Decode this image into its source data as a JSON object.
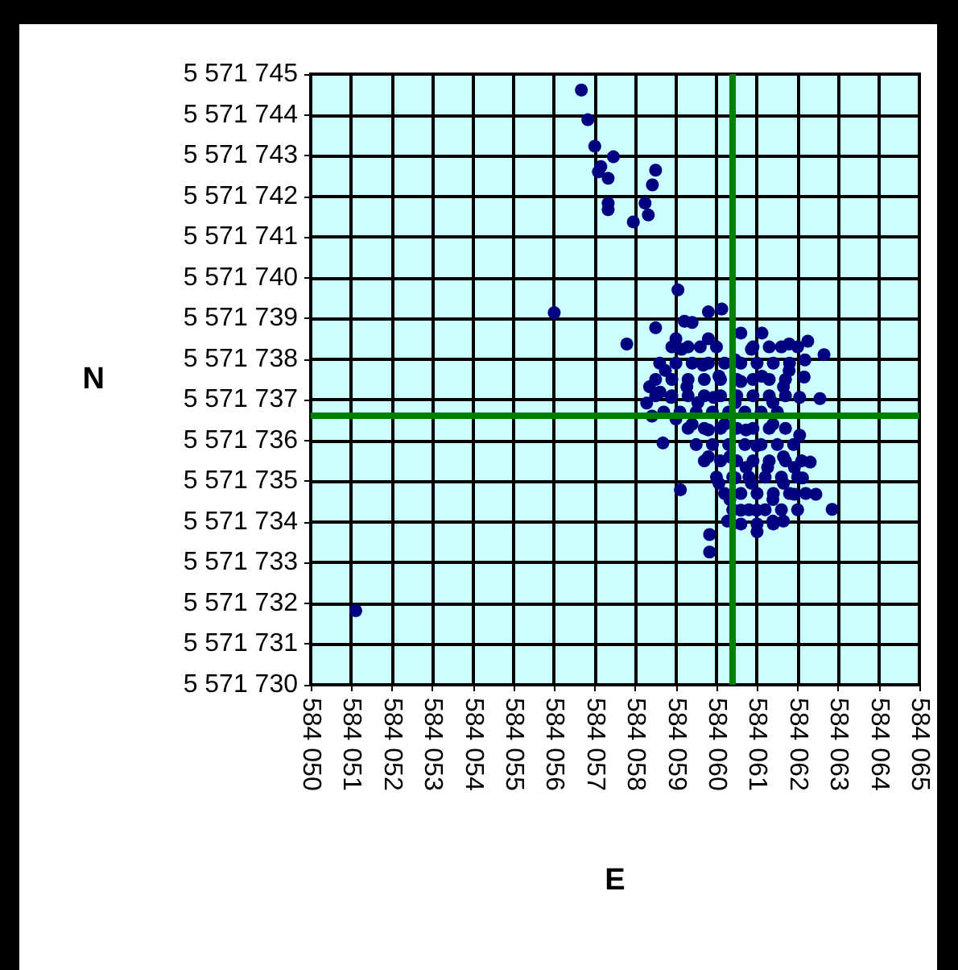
{
  "chart_data": {
    "type": "scatter",
    "xlabel": "E",
    "ylabel": "N",
    "xlim": [
      584050,
      584065
    ],
    "ylim": [
      5571730,
      5571745
    ],
    "xticks": [
      {
        "value": 584050,
        "label": "584 050"
      },
      {
        "value": 584051,
        "label": "584 051"
      },
      {
        "value": 584052,
        "label": "584 052"
      },
      {
        "value": 584053,
        "label": "584 053"
      },
      {
        "value": 584054,
        "label": "584 054"
      },
      {
        "value": 584055,
        "label": "584 055"
      },
      {
        "value": 584056,
        "label": "584 056"
      },
      {
        "value": 584057,
        "label": "584 057"
      },
      {
        "value": 584058,
        "label": "584 058"
      },
      {
        "value": 584059,
        "label": "584 059"
      },
      {
        "value": 584060,
        "label": "584 060"
      },
      {
        "value": 584061,
        "label": "584 061"
      },
      {
        "value": 584062,
        "label": "584 062"
      },
      {
        "value": 584063,
        "label": "584 063"
      },
      {
        "value": 584064,
        "label": "584 064"
      },
      {
        "value": 584065,
        "label": "584 065"
      }
    ],
    "yticks": [
      {
        "value": 5571730,
        "label": "5 571 730"
      },
      {
        "value": 5571731,
        "label": "5 571 731"
      },
      {
        "value": 5571732,
        "label": "5 571 732"
      },
      {
        "value": 5571733,
        "label": "5 571 733"
      },
      {
        "value": 5571734,
        "label": "5 571 734"
      },
      {
        "value": 5571735,
        "label": "5 571 735"
      },
      {
        "value": 5571736,
        "label": "5 571 736"
      },
      {
        "value": 5571737,
        "label": "5 571 737"
      },
      {
        "value": 5571738,
        "label": "5 571 738"
      },
      {
        "value": 5571739,
        "label": "5 571 739"
      },
      {
        "value": 5571740,
        "label": "5 571 740"
      },
      {
        "value": 5571741,
        "label": "5 571 741"
      },
      {
        "value": 5571742,
        "label": "5 571 742"
      },
      {
        "value": 5571743,
        "label": "5 571 743"
      },
      {
        "value": 5571744,
        "label": "5 571 744"
      },
      {
        "value": 5571745,
        "label": "5 571 745"
      }
    ],
    "grid": true,
    "marker": "circle",
    "ref_lines": [
      {
        "axis": "x",
        "value": 584060.4,
        "color": "#008000"
      },
      {
        "axis": "y",
        "value": 5571736.6,
        "color": "#008000"
      }
    ],
    "series": [
      {
        "color": "#000080",
        "x": [
          584056.67,
          584056.83,
          584057.0,
          584057.46,
          584057.15,
          584057.09,
          584057.33,
          584058.5,
          584058.42,
          584057.33,
          584057.33,
          584058.24,
          584058.32,
          584057.95,
          584051.11,
          584056.0,
          584059.05,
          584059.21,
          584057.79,
          584058.5,
          584060.13,
          584062.65,
          584062.16,
          584062.55,
          584062.05,
          584062.25,
          584061.12,
          584060.6,
          584059.11,
          584059.83,
          584059.83,
          584062.85,
          584062.45,
          584058.41,
          584058.28,
          584058.68,
          584060.27,
          584061.0,
          584061.65,
          584062.12,
          584062.05,
          584061.39,
          584061.79,
          584061.79,
          584058.74,
          584059.14,
          584059.8,
          584059.54,
          584060.06,
          584059.8,
          584060.33,
          584060.86,
          584061.39,
          584060.73,
          584061.65,
          584061.12,
          584059.27,
          584059.0,
          584060.46,
          584060.06,
          584060.6,
          584061.92,
          584060.86,
          584058.61,
          584059.4,
          584059.67,
          584058.88,
          584059.93,
          584059.4,
          584060.2,
          584060.99,
          584061.26,
          584060.46,
          584060.99,
          584061.65,
          584061.92,
          584061.39,
          584061.65,
          584062.18,
          584060.46,
          584059.8,
          584059.0,
          584058.35,
          584060.6,
          584059.8,
          584060.73,
          584061.39,
          584060.33,
          584062.31,
          584058.9,
          584059.3,
          584059.6,
          584060.0,
          584060.9,
          584061.3,
          584061.6,
          584062.0,
          584058.6,
          584059.0,
          584059.4,
          584059.8,
          584060.2,
          584060.6,
          584061.0,
          584061.4,
          584061.8,
          584058.5,
          584058.9,
          584059.3,
          584059.7,
          584060.1,
          584060.5,
          584060.9,
          584061.3,
          584061.7,
          584058.5,
          584058.9,
          584059.3,
          584059.7,
          584060.1,
          584060.5,
          584060.9,
          584061.3,
          584061.7,
          584058.7,
          584059.1,
          584059.5,
          584059.9,
          584060.3,
          584060.7,
          584061.1,
          584061.5,
          584059.3,
          584059.7,
          584060.1,
          584060.5,
          584060.9,
          584061.3,
          584061.7,
          584059.5,
          584059.9,
          584060.3,
          584060.7,
          584061.1,
          584061.5,
          584061.9,
          584059.7,
          584060.1,
          584060.5,
          584060.9,
          584061.3,
          584061.7,
          584062.1,
          584060.0,
          584060.4,
          584060.8,
          584061.2,
          584061.6,
          584062.0,
          584060.2,
          584060.6,
          584061.0,
          584061.4,
          584061.8,
          584062.2,
          584060.4,
          584060.8,
          584061.2,
          584061.6,
          584062.0,
          584060.6,
          584061.0,
          584061.4
        ],
        "values": [
          5571744.61,
          5571743.88,
          5571743.23,
          5571742.97,
          5571742.73,
          5571742.6,
          5571742.44,
          5571742.64,
          5571742.28,
          5571741.83,
          5571741.67,
          5571741.83,
          5571741.54,
          5571741.37,
          5571731.82,
          5571739.14,
          5571739.7,
          5571738.93,
          5571738.37,
          5571738.77,
          5571739.23,
          5571738.11,
          5571737.56,
          5571737.03,
          5571737.06,
          5571738.44,
          5571738.64,
          5571738.64,
          5571734.79,
          5571733.69,
          5571733.26,
          5571734.31,
          5571734.68,
          5571736.6,
          5571736.92,
          5571735.94,
          5571734.02,
          5571733.76,
          5571734.02,
          5571735.08,
          5571736.13,
          5571736.93,
          5571737.72,
          5571738.37,
          5571737.72,
          5571738.24,
          5571738.5,
          5571736.93,
          5571737.58,
          5571736.26,
          5571735.6,
          5571734.95,
          5571734.55,
          5571736.26,
          5571735.6,
          5571737.58,
          5571737.32,
          5571736.53,
          5571736.93,
          5571734.95,
          5571734.29,
          5571734.68,
          5571738.24,
          5571737.19,
          5571738.9,
          5571737.85,
          5571737.06,
          5571737.06,
          5571736.4,
          5571736.4,
          5571735.87,
          5571735.34,
          5571735.08,
          5571734.29,
          5571734.95,
          5571735.34,
          5571736.4,
          5571737.32,
          5571737.98,
          5571737.98,
          5571739.16,
          5571738.5,
          5571737.32,
          5571737.45,
          5571735.6,
          5571735.34,
          5571734.02,
          5571734.55,
          5571735.47,
          5571738.3,
          5571738.3,
          5571738.3,
          5571738.3,
          5571738.3,
          5571738.3,
          5571738.3,
          5571738.3,
          5571737.9,
          5571737.9,
          5571737.9,
          5571737.9,
          5571737.9,
          5571737.9,
          5571737.9,
          5571737.9,
          5571737.9,
          5571737.5,
          5571737.5,
          5571737.5,
          5571737.5,
          5571737.5,
          5571737.5,
          5571737.5,
          5571737.5,
          5571737.5,
          5571737.1,
          5571737.1,
          5571737.1,
          5571737.1,
          5571737.1,
          5571737.1,
          5571737.1,
          5571737.1,
          5571737.1,
          5571736.7,
          5571736.7,
          5571736.7,
          5571736.7,
          5571736.7,
          5571736.7,
          5571736.7,
          5571736.7,
          5571736.3,
          5571736.3,
          5571736.3,
          5571736.3,
          5571736.3,
          5571736.3,
          5571736.3,
          5571735.9,
          5571735.9,
          5571735.9,
          5571735.9,
          5571735.9,
          5571735.9,
          5571735.9,
          5571735.5,
          5571735.5,
          5571735.5,
          5571735.5,
          5571735.5,
          5571735.5,
          5571735.5,
          5571735.1,
          5571735.1,
          5571735.1,
          5571735.1,
          5571735.1,
          5571735.1,
          5571734.7,
          5571734.7,
          5571734.7,
          5571734.7,
          5571734.7,
          5571734.7,
          5571734.3,
          5571734.3,
          5571734.3,
          5571734.3,
          5571734.3,
          5571733.95,
          5571733.95,
          5571733.95
        ]
      }
    ]
  }
}
